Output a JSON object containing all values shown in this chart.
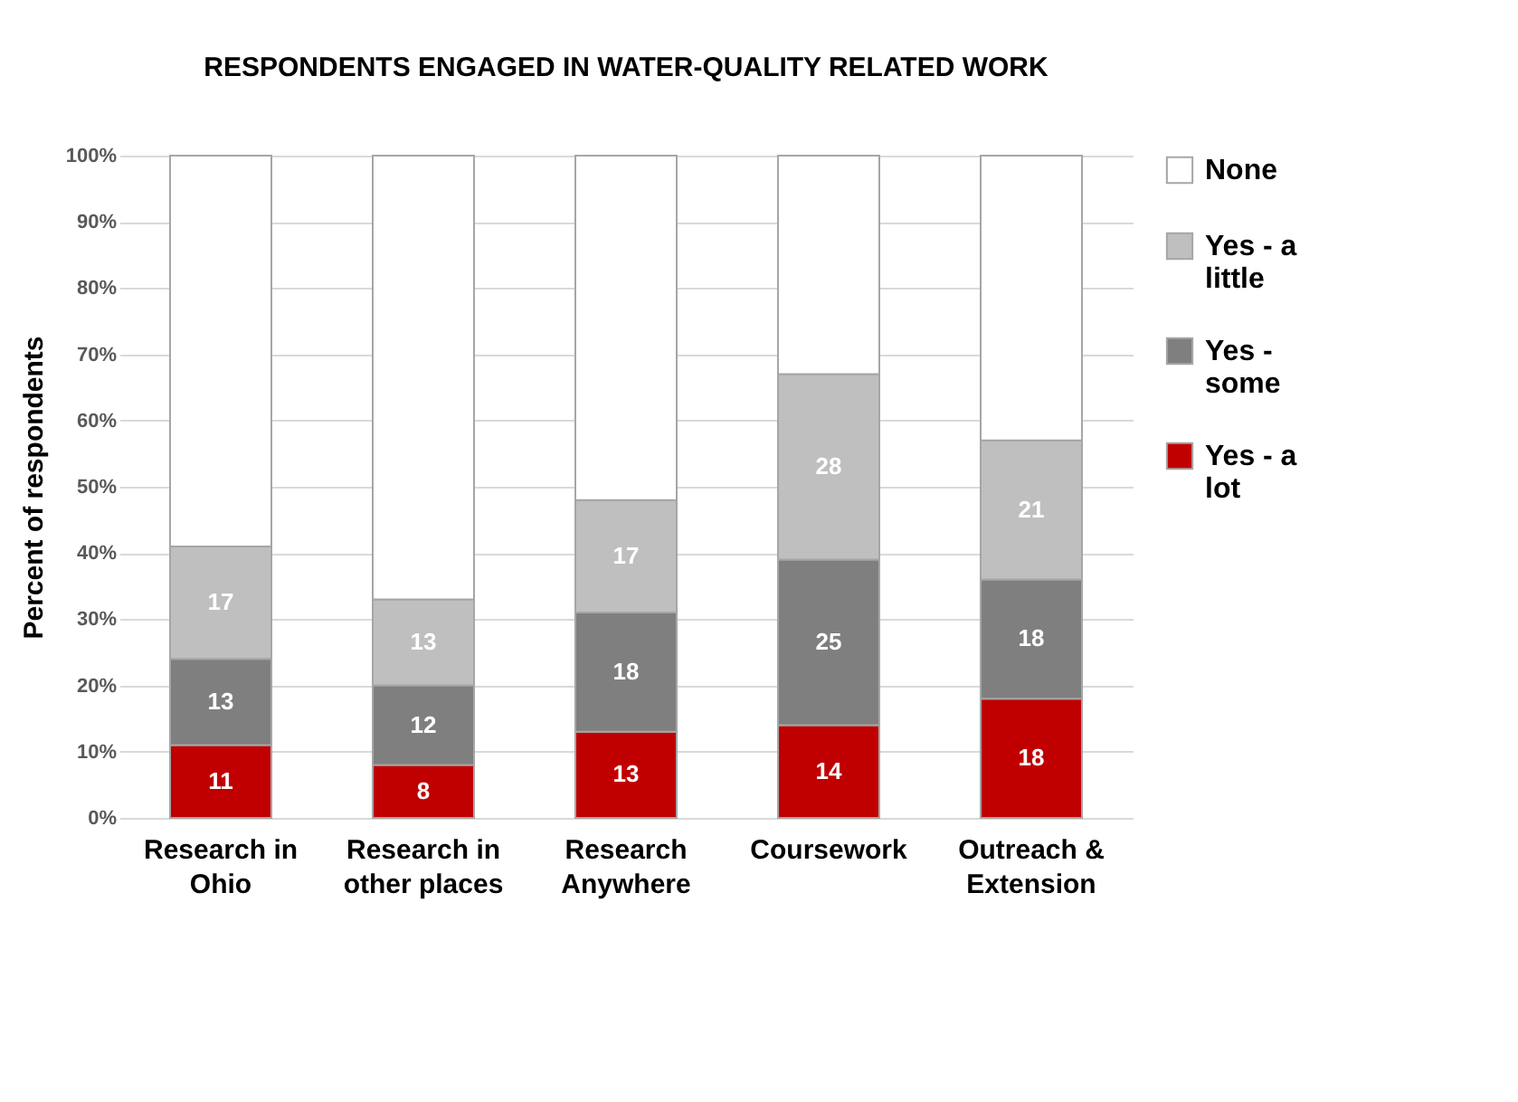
{
  "chart_data": {
    "type": "bar",
    "title": "RESPONDENTS ENGAGED IN WATER-QUALITY RELATED WORK",
    "ylabel": "Percent of respondents",
    "categories": [
      "Research in Ohio",
      "Research in other places",
      "Research Anywhere",
      "Coursework",
      "Outreach & Extension"
    ],
    "stacked": true,
    "series": [
      {
        "name": "Yes - a lot",
        "color": "#c00000",
        "values": [
          11,
          8,
          13,
          14,
          18
        ],
        "value_labels": [
          "11",
          "8",
          "13",
          "14",
          "18"
        ]
      },
      {
        "name": "Yes - some",
        "color": "#7f7f7f",
        "values": [
          13,
          12,
          18,
          25,
          18
        ],
        "value_labels": [
          "13",
          "12",
          "18",
          "25",
          "18"
        ]
      },
      {
        "name": "Yes - a little",
        "color": "#bfbfbf",
        "values": [
          17,
          13,
          17,
          28,
          21
        ],
        "value_labels": [
          "17",
          "13",
          "17",
          "28",
          "21"
        ]
      },
      {
        "name": "None",
        "color": "#ffffff",
        "values": [
          59,
          67,
          52,
          33,
          43
        ],
        "value_labels": [
          null,
          null,
          null,
          null,
          null
        ]
      }
    ],
    "ylim": [
      0,
      100
    ],
    "yticks": [
      {
        "value": 0,
        "label": "0%"
      },
      {
        "value": 10,
        "label": "10%"
      },
      {
        "value": 20,
        "label": "20%"
      },
      {
        "value": 30,
        "label": "30%"
      },
      {
        "value": 40,
        "label": "40%"
      },
      {
        "value": 50,
        "label": "50%"
      },
      {
        "value": 60,
        "label": "60%"
      },
      {
        "value": 70,
        "label": "70%"
      },
      {
        "value": 80,
        "label": "80%"
      },
      {
        "value": 90,
        "label": "90%"
      },
      {
        "value": 100,
        "label": "100%"
      }
    ],
    "grid": "y",
    "legend": "right"
  }
}
